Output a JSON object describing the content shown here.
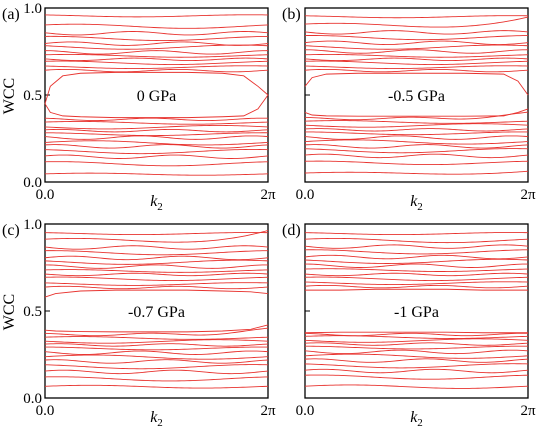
{
  "colors": {
    "line": "#e8332f",
    "axis": "#000000"
  },
  "chart_data": [
    {
      "type": "line",
      "panel_label": "(a)",
      "annotation": "0 GPa",
      "xlabel": "k2",
      "xlabel_base": "k",
      "xlabel_sub": "2",
      "ylabel": "WCC",
      "xlim": [
        0,
        6.2832
      ],
      "ylim": [
        0,
        1
      ],
      "x_ticks": [
        "0.0",
        "2π"
      ],
      "y_ticks": [
        "0.0",
        "0.5",
        "1.0"
      ],
      "grid": false,
      "series_count": 24,
      "bands": [
        {
          "base": 0.045,
          "amp": 0.006,
          "freq": 1,
          "phase": 0.3,
          "tilt": 0
        },
        {
          "base": 0.105,
          "amp": 0.012,
          "freq": 1,
          "phase": 1.2,
          "tilt": 0
        },
        {
          "base": 0.145,
          "amp": 0.01,
          "freq": 2,
          "phase": 0.5,
          "tilt": 0
        },
        {
          "base": 0.175,
          "amp": 0.012,
          "freq": 1,
          "phase": 2.0,
          "tilt": 0
        },
        {
          "base": 0.205,
          "amp": 0.01,
          "freq": 2,
          "phase": 1.0,
          "tilt": 0
        },
        {
          "base": 0.225,
          "amp": 0.012,
          "freq": 1,
          "phase": 0.2,
          "tilt": 0
        },
        {
          "base": 0.255,
          "amp": 0.01,
          "freq": 2,
          "phase": 2.5,
          "tilt": 0
        },
        {
          "base": 0.275,
          "amp": 0.008,
          "freq": 1,
          "phase": 1.7,
          "tilt": 0
        },
        {
          "base": 0.295,
          "amp": 0.007,
          "freq": 2,
          "phase": 0.8,
          "tilt": 0
        },
        {
          "base": 0.315,
          "amp": 0.01,
          "freq": 1,
          "phase": 3.0,
          "tilt": 0
        },
        {
          "base": 0.34,
          "amp": 0.008,
          "freq": 1,
          "phase": 0.6,
          "tilt": 0
        },
        {
          "base": 0.36,
          "amp": 0.007,
          "freq": 2,
          "phase": 1.9,
          "tilt": 0
        },
        {
          "base": 0.64,
          "amp": 0.007,
          "freq": 2,
          "phase": 0.4,
          "tilt": 0
        },
        {
          "base": 0.66,
          "amp": 0.008,
          "freq": 1,
          "phase": 2.2,
          "tilt": 0
        },
        {
          "base": 0.685,
          "amp": 0.01,
          "freq": 1,
          "phase": 1.1,
          "tilt": 0
        },
        {
          "base": 0.705,
          "amp": 0.007,
          "freq": 2,
          "phase": 2.8,
          "tilt": 0
        },
        {
          "base": 0.725,
          "amp": 0.008,
          "freq": 1,
          "phase": 0.9,
          "tilt": 0
        },
        {
          "base": 0.745,
          "amp": 0.01,
          "freq": 2,
          "phase": 1.6,
          "tilt": 0
        },
        {
          "base": 0.775,
          "amp": 0.012,
          "freq": 1,
          "phase": 2.4,
          "tilt": 0
        },
        {
          "base": 0.795,
          "amp": 0.01,
          "freq": 2,
          "phase": 0.1,
          "tilt": 0
        },
        {
          "base": 0.825,
          "amp": 0.012,
          "freq": 1,
          "phase": 1.4,
          "tilt": 0
        },
        {
          "base": 0.855,
          "amp": 0.01,
          "freq": 2,
          "phase": 2.9,
          "tilt": 0
        },
        {
          "base": 0.895,
          "amp": 0.012,
          "freq": 1,
          "phase": 0.7,
          "tilt": 0
        },
        {
          "base": 0.955,
          "amp": 0.006,
          "freq": 1,
          "phase": 2.1,
          "tilt": 0
        }
      ],
      "gap_curves": [
        {
          "x": [
            0,
            0.15,
            0.5,
            1,
            2,
            3,
            4,
            5,
            5.6,
            6.0,
            6.2832
          ],
          "y": [
            0.45,
            0.55,
            0.61,
            0.625,
            0.63,
            0.63,
            0.63,
            0.625,
            0.61,
            0.55,
            0.5
          ]
        },
        {
          "x": [
            0,
            0.15,
            0.5,
            1,
            2,
            3,
            4,
            5,
            5.6,
            6.0,
            6.2832
          ],
          "y": [
            0.45,
            0.4,
            0.38,
            0.375,
            0.37,
            0.37,
            0.37,
            0.375,
            0.38,
            0.42,
            0.5
          ]
        }
      ]
    },
    {
      "type": "line",
      "panel_label": "(b)",
      "annotation": "-0.5 GPa",
      "xlabel": "k2",
      "xlabel_base": "k",
      "xlabel_sub": "2",
      "ylabel": "",
      "xlim": [
        0,
        6.2832
      ],
      "ylim": [
        0,
        1
      ],
      "x_ticks": [
        "0.0",
        "2π"
      ],
      "y_ticks": [],
      "grid": false,
      "series_count": 24,
      "bands": [
        {
          "base": 0.05,
          "amp": 0.006,
          "freq": 1,
          "phase": 0.3,
          "tilt": 0.01
        },
        {
          "base": 0.11,
          "amp": 0.01,
          "freq": 1,
          "phase": 1.2,
          "tilt": 0
        },
        {
          "base": 0.15,
          "amp": 0.01,
          "freq": 2,
          "phase": 0.5,
          "tilt": 0
        },
        {
          "base": 0.18,
          "amp": 0.012,
          "freq": 1,
          "phase": 2.0,
          "tilt": 0
        },
        {
          "base": 0.205,
          "amp": 0.01,
          "freq": 2,
          "phase": 1.0,
          "tilt": 0
        },
        {
          "base": 0.23,
          "amp": 0.012,
          "freq": 1,
          "phase": 0.2,
          "tilt": 0
        },
        {
          "base": 0.255,
          "amp": 0.01,
          "freq": 2,
          "phase": 2.5,
          "tilt": 0
        },
        {
          "base": 0.28,
          "amp": 0.008,
          "freq": 1,
          "phase": 1.7,
          "tilt": 0
        },
        {
          "base": 0.3,
          "amp": 0.007,
          "freq": 2,
          "phase": 0.8,
          "tilt": 0
        },
        {
          "base": 0.325,
          "amp": 0.01,
          "freq": 1,
          "phase": 3.0,
          "tilt": 0
        },
        {
          "base": 0.345,
          "amp": 0.008,
          "freq": 1,
          "phase": 0.6,
          "tilt": 0
        },
        {
          "base": 0.365,
          "amp": 0.007,
          "freq": 2,
          "phase": 1.9,
          "tilt": 0.03
        },
        {
          "base": 0.64,
          "amp": 0.007,
          "freq": 2,
          "phase": 0.4,
          "tilt": 0
        },
        {
          "base": 0.66,
          "amp": 0.008,
          "freq": 1,
          "phase": 2.2,
          "tilt": 0
        },
        {
          "base": 0.685,
          "amp": 0.01,
          "freq": 1,
          "phase": 1.1,
          "tilt": 0
        },
        {
          "base": 0.705,
          "amp": 0.007,
          "freq": 2,
          "phase": 2.8,
          "tilt": 0
        },
        {
          "base": 0.725,
          "amp": 0.008,
          "freq": 1,
          "phase": 0.9,
          "tilt": 0
        },
        {
          "base": 0.75,
          "amp": 0.01,
          "freq": 2,
          "phase": 1.6,
          "tilt": 0
        },
        {
          "base": 0.775,
          "amp": 0.012,
          "freq": 1,
          "phase": 2.4,
          "tilt": 0
        },
        {
          "base": 0.8,
          "amp": 0.01,
          "freq": 2,
          "phase": 0.1,
          "tilt": 0
        },
        {
          "base": 0.83,
          "amp": 0.012,
          "freq": 1,
          "phase": 1.4,
          "tilt": 0
        },
        {
          "base": 0.86,
          "amp": 0.01,
          "freq": 2,
          "phase": 2.9,
          "tilt": 0
        },
        {
          "base": 0.9,
          "amp": 0.012,
          "freq": 1,
          "phase": 0.7,
          "tilt": 0.04
        },
        {
          "base": 0.95,
          "amp": 0.006,
          "freq": 1,
          "phase": 2.1,
          "tilt": 0
        }
      ],
      "gap_curves": [
        {
          "x": [
            0,
            0.2,
            0.6,
            1.5,
            3,
            4.5,
            5.6,
            6.0,
            6.2832
          ],
          "y": [
            0.55,
            0.6,
            0.62,
            0.625,
            0.625,
            0.625,
            0.62,
            0.58,
            0.5
          ]
        },
        {
          "x": [
            0,
            0.2,
            0.6,
            1.5,
            3,
            4.5,
            5.6,
            6.0,
            6.2832
          ],
          "y": [
            0.4,
            0.385,
            0.38,
            0.378,
            0.378,
            0.378,
            0.38,
            0.4,
            0.42
          ]
        }
      ]
    },
    {
      "type": "line",
      "panel_label": "(c)",
      "annotation": "-0.7 GPa",
      "xlabel": "k2",
      "xlabel_base": "k",
      "xlabel_sub": "2",
      "ylabel": "WCC",
      "xlim": [
        0,
        6.2832
      ],
      "ylim": [
        0,
        1
      ],
      "x_ticks": [
        "0.0",
        "2π"
      ],
      "y_ticks": [
        "0.0",
        "0.5",
        "1.0"
      ],
      "grid": false,
      "series_count": 24,
      "bands": [
        {
          "base": 0.065,
          "amp": 0.008,
          "freq": 1,
          "phase": 0.3,
          "tilt": 0
        },
        {
          "base": 0.11,
          "amp": 0.012,
          "freq": 1,
          "phase": 1.2,
          "tilt": 0
        },
        {
          "base": 0.15,
          "amp": 0.01,
          "freq": 2,
          "phase": 0.5,
          "tilt": 0
        },
        {
          "base": 0.18,
          "amp": 0.012,
          "freq": 1,
          "phase": 2.0,
          "tilt": 0
        },
        {
          "base": 0.21,
          "amp": 0.01,
          "freq": 2,
          "phase": 1.0,
          "tilt": 0
        },
        {
          "base": 0.235,
          "amp": 0.012,
          "freq": 1,
          "phase": 0.2,
          "tilt": 0
        },
        {
          "base": 0.26,
          "amp": 0.01,
          "freq": 2,
          "phase": 2.5,
          "tilt": 0
        },
        {
          "base": 0.285,
          "amp": 0.008,
          "freq": 1,
          "phase": 1.7,
          "tilt": 0
        },
        {
          "base": 0.305,
          "amp": 0.007,
          "freq": 2,
          "phase": 0.8,
          "tilt": 0
        },
        {
          "base": 0.325,
          "amp": 0.01,
          "freq": 1,
          "phase": 3.0,
          "tilt": 0
        },
        {
          "base": 0.345,
          "amp": 0.008,
          "freq": 1,
          "phase": 0.6,
          "tilt": 0
        },
        {
          "base": 0.365,
          "amp": 0.007,
          "freq": 2,
          "phase": 1.9,
          "tilt": 0.03
        },
        {
          "base": 0.635,
          "amp": 0.007,
          "freq": 2,
          "phase": 0.4,
          "tilt": 0
        },
        {
          "base": 0.655,
          "amp": 0.008,
          "freq": 1,
          "phase": 2.2,
          "tilt": 0
        },
        {
          "base": 0.685,
          "amp": 0.01,
          "freq": 1,
          "phase": 1.1,
          "tilt": 0
        },
        {
          "base": 0.71,
          "amp": 0.007,
          "freq": 2,
          "phase": 2.8,
          "tilt": 0
        },
        {
          "base": 0.73,
          "amp": 0.008,
          "freq": 1,
          "phase": 0.9,
          "tilt": 0
        },
        {
          "base": 0.755,
          "amp": 0.01,
          "freq": 2,
          "phase": 1.6,
          "tilt": 0
        },
        {
          "base": 0.78,
          "amp": 0.012,
          "freq": 1,
          "phase": 2.4,
          "tilt": 0
        },
        {
          "base": 0.805,
          "amp": 0.01,
          "freq": 2,
          "phase": 0.1,
          "tilt": 0
        },
        {
          "base": 0.835,
          "amp": 0.012,
          "freq": 1,
          "phase": 1.4,
          "tilt": 0
        },
        {
          "base": 0.865,
          "amp": 0.01,
          "freq": 2,
          "phase": 2.9,
          "tilt": 0
        },
        {
          "base": 0.905,
          "amp": 0.012,
          "freq": 1,
          "phase": 0.7,
          "tilt": 0.05
        },
        {
          "base": 0.945,
          "amp": 0.006,
          "freq": 1,
          "phase": 2.1,
          "tilt": 0
        }
      ],
      "gap_curves": [
        {
          "x": [
            0,
            0.3,
            1,
            2,
            3,
            4,
            5,
            5.8,
            6.2832
          ],
          "y": [
            0.58,
            0.6,
            0.615,
            0.62,
            0.62,
            0.62,
            0.615,
            0.61,
            0.6
          ]
        },
        {
          "x": [
            0,
            0.3,
            1,
            2,
            3,
            4,
            5,
            5.8,
            6.2832
          ],
          "y": [
            0.39,
            0.385,
            0.382,
            0.38,
            0.38,
            0.38,
            0.385,
            0.395,
            0.42
          ]
        }
      ]
    },
    {
      "type": "line",
      "panel_label": "(d)",
      "annotation": "-1 GPa",
      "xlabel": "k2",
      "xlabel_base": "k",
      "xlabel_sub": "2",
      "ylabel": "",
      "xlim": [
        0,
        6.2832
      ],
      "ylim": [
        0,
        1
      ],
      "x_ticks": [
        "0.0",
        "2π"
      ],
      "y_ticks": [],
      "grid": false,
      "series_count": 24,
      "bands": [
        {
          "base": 0.065,
          "amp": 0.01,
          "freq": 1,
          "phase": 0.3,
          "tilt": 0
        },
        {
          "base": 0.12,
          "amp": 0.012,
          "freq": 1,
          "phase": 1.2,
          "tilt": 0
        },
        {
          "base": 0.155,
          "amp": 0.01,
          "freq": 2,
          "phase": 0.5,
          "tilt": 0
        },
        {
          "base": 0.185,
          "amp": 0.012,
          "freq": 1,
          "phase": 2.0,
          "tilt": 0
        },
        {
          "base": 0.215,
          "amp": 0.01,
          "freq": 2,
          "phase": 1.0,
          "tilt": 0
        },
        {
          "base": 0.24,
          "amp": 0.012,
          "freq": 1,
          "phase": 0.2,
          "tilt": 0
        },
        {
          "base": 0.265,
          "amp": 0.01,
          "freq": 2,
          "phase": 2.5,
          "tilt": 0
        },
        {
          "base": 0.29,
          "amp": 0.008,
          "freq": 1,
          "phase": 1.7,
          "tilt": 0
        },
        {
          "base": 0.31,
          "amp": 0.007,
          "freq": 2,
          "phase": 0.8,
          "tilt": 0
        },
        {
          "base": 0.33,
          "amp": 0.01,
          "freq": 1,
          "phase": 3.0,
          "tilt": 0
        },
        {
          "base": 0.35,
          "amp": 0.008,
          "freq": 1,
          "phase": 0.6,
          "tilt": 0
        },
        {
          "base": 0.365,
          "amp": 0.007,
          "freq": 2,
          "phase": 1.9,
          "tilt": 0
        },
        {
          "base": 0.64,
          "amp": 0.007,
          "freq": 2,
          "phase": 0.4,
          "tilt": 0
        },
        {
          "base": 0.66,
          "amp": 0.008,
          "freq": 1,
          "phase": 2.2,
          "tilt": 0
        },
        {
          "base": 0.685,
          "amp": 0.01,
          "freq": 1,
          "phase": 1.1,
          "tilt": 0
        },
        {
          "base": 0.71,
          "amp": 0.007,
          "freq": 2,
          "phase": 2.8,
          "tilt": 0
        },
        {
          "base": 0.735,
          "amp": 0.008,
          "freq": 1,
          "phase": 0.9,
          "tilt": 0
        },
        {
          "base": 0.76,
          "amp": 0.01,
          "freq": 2,
          "phase": 1.6,
          "tilt": 0
        },
        {
          "base": 0.785,
          "amp": 0.012,
          "freq": 1,
          "phase": 2.4,
          "tilt": 0
        },
        {
          "base": 0.81,
          "amp": 0.01,
          "freq": 2,
          "phase": 0.1,
          "tilt": 0
        },
        {
          "base": 0.84,
          "amp": 0.012,
          "freq": 1,
          "phase": 1.4,
          "tilt": 0
        },
        {
          "base": 0.87,
          "amp": 0.01,
          "freq": 2,
          "phase": 2.9,
          "tilt": 0
        },
        {
          "base": 0.905,
          "amp": 0.012,
          "freq": 1,
          "phase": 0.7,
          "tilt": 0
        },
        {
          "base": 0.945,
          "amp": 0.006,
          "freq": 1,
          "phase": 2.1,
          "tilt": 0
        }
      ],
      "gap_curves": [
        {
          "x": [
            0,
            1,
            2,
            3,
            4,
            5,
            6.2832
          ],
          "y": [
            0.62,
            0.62,
            0.625,
            0.625,
            0.625,
            0.62,
            0.62
          ]
        },
        {
          "x": [
            0,
            1,
            2,
            3,
            4,
            5,
            6.2832
          ],
          "y": [
            0.375,
            0.378,
            0.378,
            0.378,
            0.378,
            0.375,
            0.375
          ]
        }
      ]
    }
  ]
}
